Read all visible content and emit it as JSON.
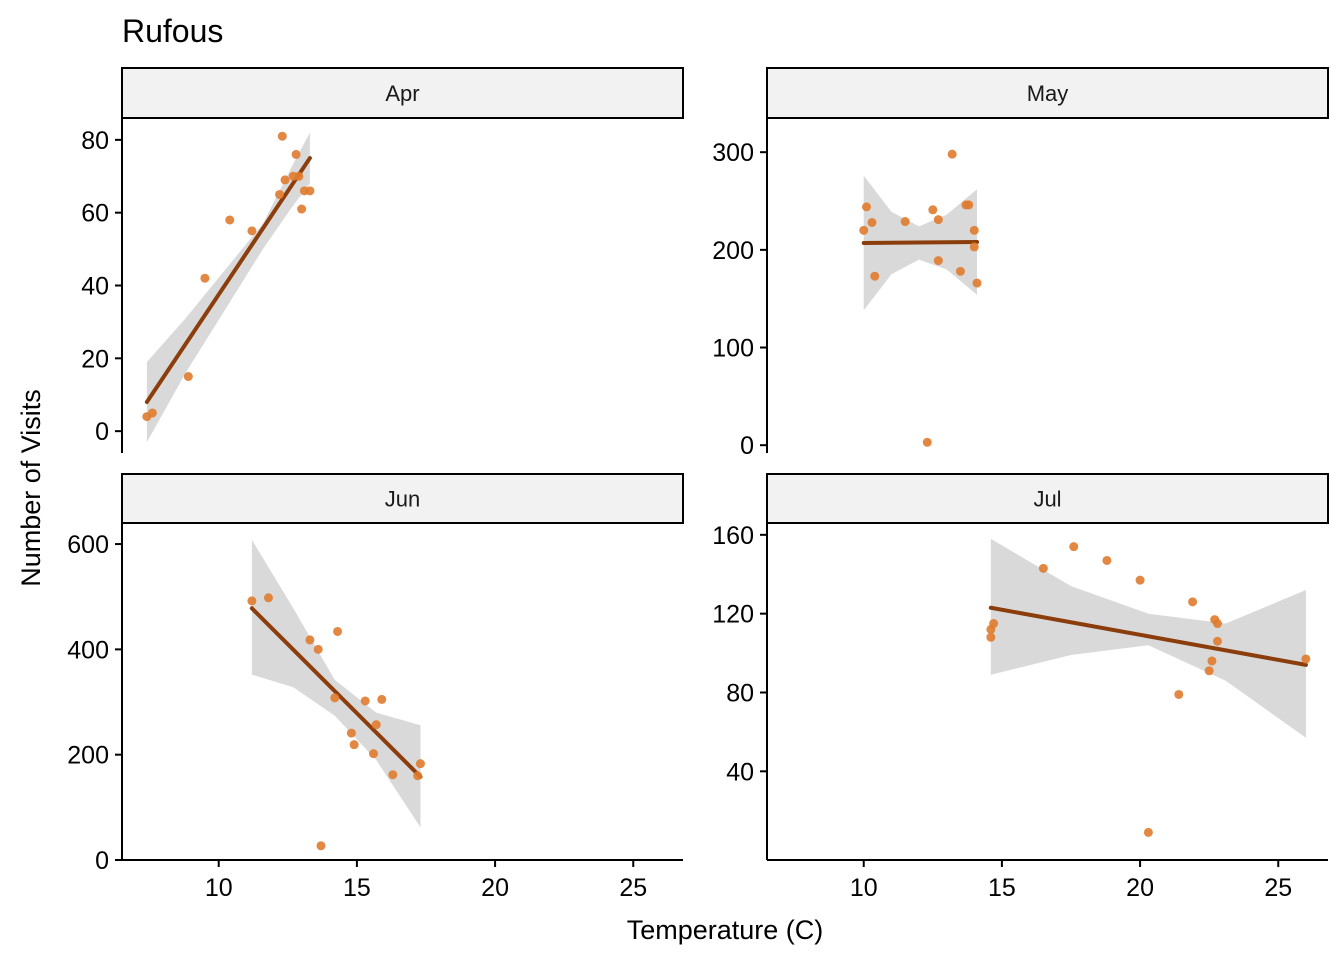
{
  "colors": {
    "point": "#E07B2E",
    "line": "#8B3D0C",
    "ribbon": "#D9D9D9",
    "strip_fill": "#F2F2F2",
    "strip_border": "#000000",
    "axis": "#000000"
  },
  "chart_data": {
    "type": "scatter",
    "title": "Rufous",
    "xlabel": "Temperature (C)",
    "ylabel": "Number of Visits",
    "xlim": [
      6.5,
      26.8
    ],
    "x_ticks": [
      10,
      15,
      20,
      25
    ],
    "grid": false,
    "legend": "none",
    "facets": [
      {
        "name": "Apr",
        "ylim": [
          -6,
          86
        ],
        "y_ticks": [
          0,
          20,
          40,
          60,
          80
        ],
        "points": [
          [
            7.4,
            4
          ],
          [
            7.6,
            5
          ],
          [
            8.9,
            15
          ],
          [
            9.5,
            42
          ],
          [
            10.4,
            58
          ],
          [
            11.2,
            55
          ],
          [
            12.2,
            65
          ],
          [
            12.3,
            81
          ],
          [
            12.4,
            69
          ],
          [
            12.7,
            70
          ],
          [
            12.8,
            76
          ],
          [
            12.9,
            70
          ],
          [
            13.0,
            61
          ],
          [
            13.1,
            66
          ],
          [
            13.3,
            66
          ]
        ],
        "fit": {
          "x": [
            7.4,
            13.3
          ],
          "y": [
            8,
            75
          ]
        },
        "ribbon": {
          "x": [
            7.4,
            8.8,
            10.2,
            11.6,
            12.6,
            13.3
          ],
          "lower": [
            -3,
            16,
            33,
            50,
            61,
            68
          ],
          "upper": [
            19,
            31,
            44,
            57,
            72,
            82
          ]
        }
      },
      {
        "name": "May",
        "ylim": [
          -8,
          335
        ],
        "y_ticks": [
          0,
          100,
          200,
          300
        ],
        "points": [
          [
            10.0,
            220
          ],
          [
            10.1,
            244
          ],
          [
            10.3,
            228
          ],
          [
            10.4,
            173
          ],
          [
            11.5,
            229
          ],
          [
            12.3,
            3
          ],
          [
            12.5,
            241
          ],
          [
            12.7,
            231
          ],
          [
            12.7,
            189
          ],
          [
            13.2,
            298
          ],
          [
            13.5,
            178
          ],
          [
            13.7,
            246
          ],
          [
            13.8,
            246
          ],
          [
            14.0,
            220
          ],
          [
            14.0,
            203
          ],
          [
            14.1,
            166
          ]
        ],
        "fit": {
          "x": [
            10.0,
            14.1
          ],
          "y": [
            207,
            208
          ]
        },
        "ribbon": {
          "x": [
            10.0,
            11.0,
            12.0,
            13.0,
            14.1
          ],
          "lower": [
            138,
            175,
            190,
            180,
            154
          ],
          "upper": [
            276,
            239,
            224,
            236,
            262
          ]
        }
      },
      {
        "name": "Jun",
        "ylim": [
          0,
          640
        ],
        "y_ticks": [
          0,
          200,
          400,
          600
        ],
        "points": [
          [
            11.2,
            492
          ],
          [
            11.8,
            498
          ],
          [
            13.3,
            418
          ],
          [
            13.6,
            400
          ],
          [
            13.7,
            27
          ],
          [
            14.2,
            308
          ],
          [
            14.3,
            434
          ],
          [
            14.8,
            241
          ],
          [
            14.9,
            219
          ],
          [
            15.3,
            302
          ],
          [
            15.6,
            202
          ],
          [
            15.7,
            257
          ],
          [
            15.9,
            305
          ],
          [
            16.3,
            162
          ],
          [
            17.2,
            160
          ],
          [
            17.3,
            183
          ]
        ],
        "fit": {
          "x": [
            11.2,
            17.3
          ],
          "y": [
            478,
            158
          ]
        },
        "ribbon": {
          "x": [
            11.2,
            12.7,
            14.2,
            15.7,
            17.3
          ],
          "lower": [
            352,
            328,
            274,
            190,
            62
          ],
          "upper": [
            608,
            478,
            342,
            280,
            256
          ]
        }
      },
      {
        "name": "Jul",
        "ylim": [
          -5,
          166
        ],
        "y_ticks": [
          40,
          80,
          120,
          160
        ],
        "points": [
          [
            14.6,
            108
          ],
          [
            14.6,
            112
          ],
          [
            14.7,
            115
          ],
          [
            16.5,
            143
          ],
          [
            17.6,
            154
          ],
          [
            18.8,
            147
          ],
          [
            20.0,
            137
          ],
          [
            20.3,
            9
          ],
          [
            21.4,
            79
          ],
          [
            21.9,
            126
          ],
          [
            22.5,
            91
          ],
          [
            22.6,
            96
          ],
          [
            22.7,
            117
          ],
          [
            22.8,
            106
          ],
          [
            22.8,
            115
          ],
          [
            26.0,
            97
          ]
        ],
        "fit": {
          "x": [
            14.6,
            26.0
          ],
          "y": [
            123,
            94
          ]
        },
        "ribbon": {
          "x": [
            14.6,
            17.5,
            20.3,
            23.1,
            26.0
          ],
          "lower": [
            89,
            99,
            104,
            86,
            57
          ],
          "upper": [
            158,
            134,
            120,
            115,
            132
          ]
        }
      }
    ]
  }
}
